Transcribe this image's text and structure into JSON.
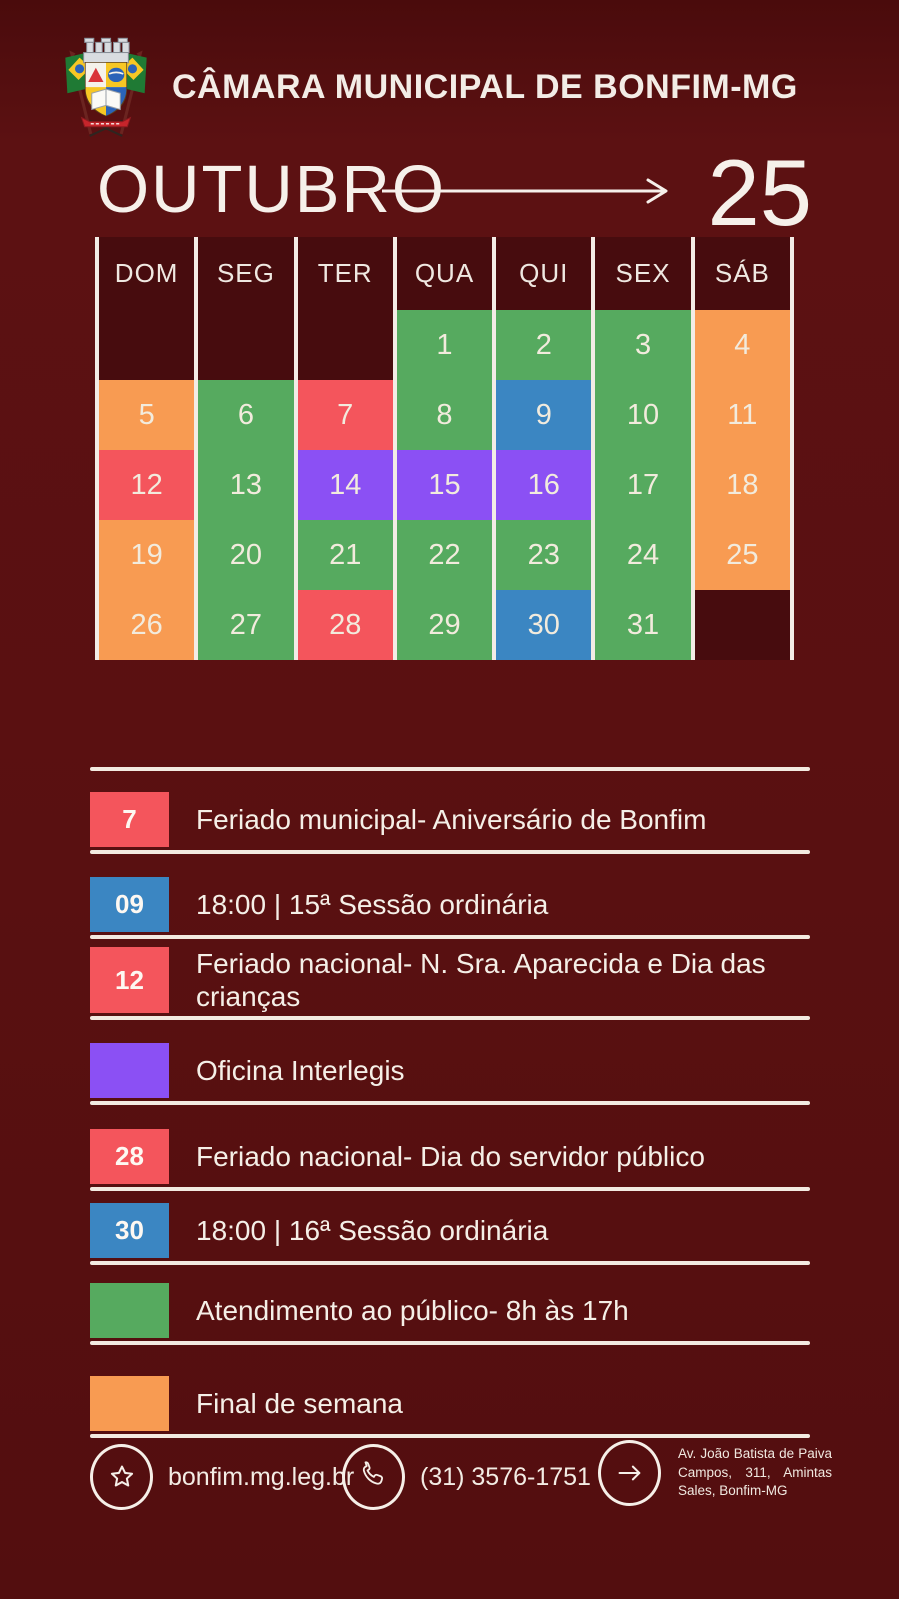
{
  "header": {
    "title": "CÂMARA MUNICIPAL DE BONFIM-MG",
    "logo": "bonfim-coat-of-arms"
  },
  "month": {
    "name": "OUTUBRO",
    "year": "25"
  },
  "calendar": {
    "day_headers": [
      "DOM",
      "SEG",
      "TER",
      "QUA",
      "QUI",
      "SEX",
      "SÁB"
    ],
    "colors": {
      "green": "#56aa5f",
      "orange": "#f89b52",
      "red": "#f4555c",
      "blue": "#3b86c2",
      "purple": "#8b50f4"
    },
    "weeks": [
      [
        {
          "day": "",
          "type": "empty"
        },
        {
          "day": "",
          "type": "empty"
        },
        {
          "day": "",
          "type": "empty"
        },
        {
          "day": "1",
          "type": "green"
        },
        {
          "day": "2",
          "type": "green"
        },
        {
          "day": "3",
          "type": "green"
        },
        {
          "day": "4",
          "type": "orange"
        }
      ],
      [
        {
          "day": "5",
          "type": "orange"
        },
        {
          "day": "6",
          "type": "green"
        },
        {
          "day": "7",
          "type": "red"
        },
        {
          "day": "8",
          "type": "green"
        },
        {
          "day": "9",
          "type": "blue"
        },
        {
          "day": "10",
          "type": "green"
        },
        {
          "day": "11",
          "type": "orange"
        }
      ],
      [
        {
          "day": "12",
          "type": "red"
        },
        {
          "day": "13",
          "type": "green"
        },
        {
          "day": "14",
          "type": "purple"
        },
        {
          "day": "15",
          "type": "purple"
        },
        {
          "day": "16",
          "type": "purple"
        },
        {
          "day": "17",
          "type": "green"
        },
        {
          "day": "18",
          "type": "orange"
        }
      ],
      [
        {
          "day": "19",
          "type": "orange"
        },
        {
          "day": "20",
          "type": "green"
        },
        {
          "day": "21",
          "type": "green"
        },
        {
          "day": "22",
          "type": "green"
        },
        {
          "day": "23",
          "type": "green"
        },
        {
          "day": "24",
          "type": "green"
        },
        {
          "day": "25",
          "type": "orange"
        }
      ],
      [
        {
          "day": "26",
          "type": "orange"
        },
        {
          "day": "27",
          "type": "green"
        },
        {
          "day": "28",
          "type": "red"
        },
        {
          "day": "29",
          "type": "green"
        },
        {
          "day": "30",
          "type": "blue"
        },
        {
          "day": "31",
          "type": "green"
        },
        {
          "day": "",
          "type": "empty"
        }
      ]
    ]
  },
  "legend": [
    {
      "badge": "7",
      "color": "red",
      "text": "Feriado municipal- Aniversário de Bonfim"
    },
    {
      "badge": "09",
      "color": "blue",
      "text": "18:00 | 15ª Sessão ordinária"
    },
    {
      "badge": "12",
      "color": "red",
      "text": "Feriado nacional- N. Sra. Aparecida e Dia das crianças"
    },
    {
      "badge": "",
      "color": "purple",
      "text": "Oficina Interlegis"
    },
    {
      "badge": "28",
      "color": "red",
      "text": "Feriado nacional- Dia do servidor público"
    },
    {
      "badge": "30",
      "color": "blue",
      "text": "18:00 | 16ª Sessão ordinária"
    },
    {
      "badge": "",
      "color": "green",
      "text": "Atendimento ao público- 8h às 17h"
    },
    {
      "badge": "",
      "color": "orange",
      "text": "Final de semana"
    }
  ],
  "footer": {
    "website": {
      "icon": "star-icon",
      "text": "bonfim.mg.leg.br"
    },
    "phone": {
      "icon": "phone-icon",
      "text": "(31) 3576-1751"
    },
    "address": {
      "icon": "arrow-right-icon",
      "text": "Av. João Batista de Paiva Campos, 311, Amintas Sales, Bonfim-MG"
    }
  }
}
